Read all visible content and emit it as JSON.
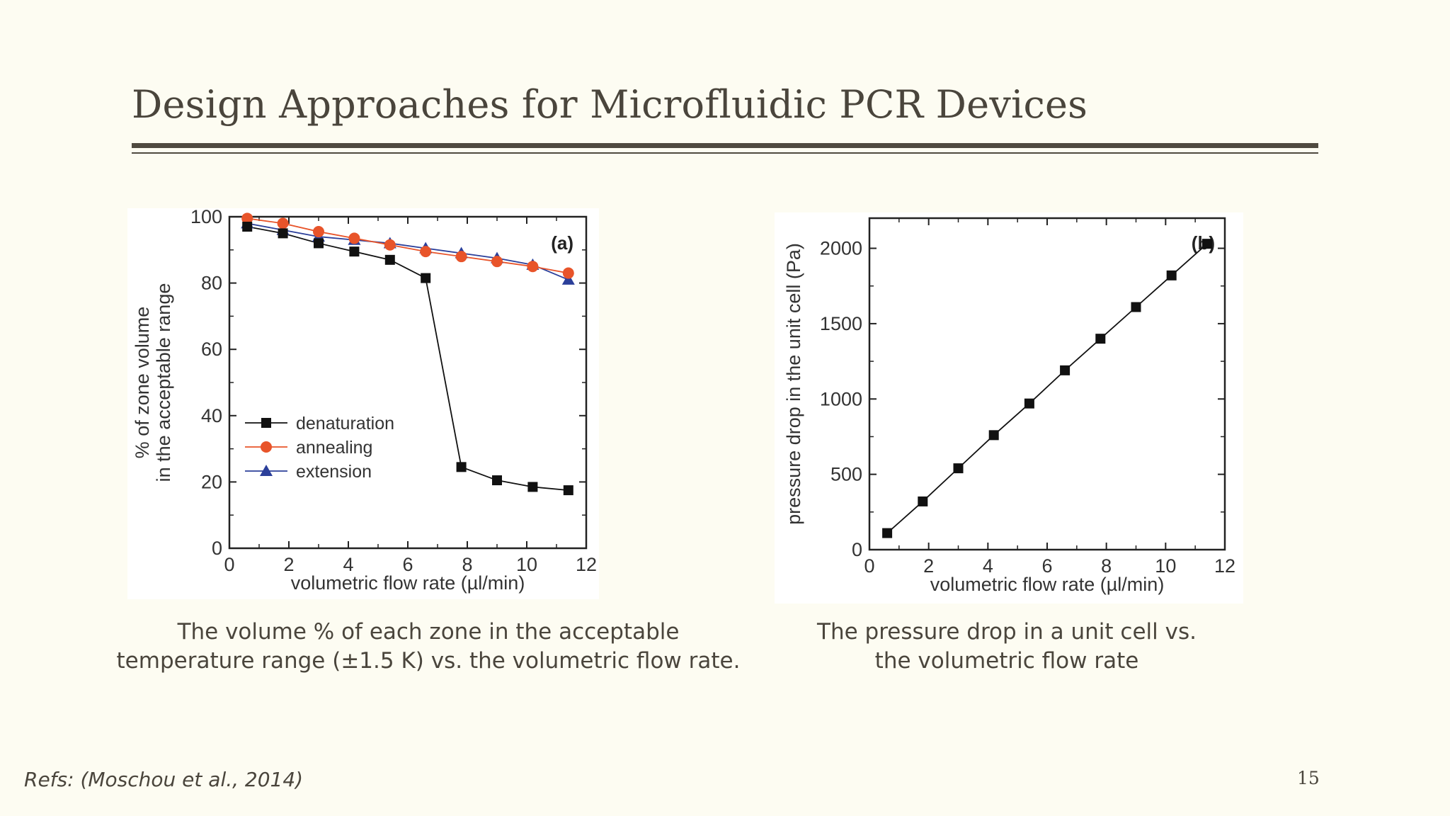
{
  "slide": {
    "title": "Design Approaches for Microfluidic PCR Devices",
    "refs": "Refs: (Moschou et al., 2014)",
    "page_number": "15"
  },
  "captions": {
    "left": [
      "The volume % of each zone in the acceptable",
      "temperature range (±1.5 K) vs.  the volumetric flow rate."
    ],
    "right": [
      "The pressure drop in a unit cell vs.",
      "the volumetric flow rate"
    ]
  },
  "chart_data": [
    {
      "type": "line",
      "panel_label": "(a)",
      "xlabel": "volumetric flow rate (µl/min)",
      "ylabel": [
        "% of zone volume",
        "in the acceptable range"
      ],
      "xlim": [
        0,
        12
      ],
      "ylim": [
        0,
        100
      ],
      "xticks": [
        0,
        2,
        4,
        6,
        8,
        10,
        12
      ],
      "yticks": [
        0,
        20,
        40,
        60,
        80,
        100
      ],
      "x": [
        0.6,
        1.8,
        3.0,
        4.2,
        5.4,
        6.6,
        7.8,
        9.0,
        10.2,
        11.4
      ],
      "legend_position": "middle-left",
      "grid": false,
      "series": [
        {
          "name": "denaturation",
          "marker": "square",
          "color": "#111111",
          "values": [
            97,
            95,
            92,
            89.5,
            87,
            81.5,
            24.5,
            20.5,
            18.5,
            17.5
          ]
        },
        {
          "name": "annealing",
          "marker": "circle",
          "color": "#e8542a",
          "values": [
            99.5,
            98,
            95.5,
            93.5,
            91.5,
            89.5,
            88,
            86.5,
            85,
            83
          ]
        },
        {
          "name": "extension",
          "marker": "triangle",
          "color": "#2b3f9a",
          "values": [
            98,
            96,
            94,
            93,
            92,
            90.5,
            89,
            87.5,
            85.5,
            81
          ]
        }
      ]
    },
    {
      "type": "line",
      "panel_label": "(b)",
      "xlabel": "volumetric flow rate (µl/min)",
      "ylabel": [
        "pressure drop in the unit cell (Pa)"
      ],
      "xlim": [
        0,
        12
      ],
      "ylim": [
        0,
        2200
      ],
      "xticks": [
        0,
        2,
        4,
        6,
        8,
        10,
        12
      ],
      "yticks": [
        0,
        500,
        1000,
        1500,
        2000
      ],
      "x": [
        0.6,
        1.8,
        3.0,
        4.2,
        5.4,
        6.6,
        7.8,
        9.0,
        10.2,
        11.4
      ],
      "grid": false,
      "series": [
        {
          "name": "",
          "marker": "square",
          "color": "#111111",
          "values": [
            110,
            320,
            540,
            760,
            970,
            1190,
            1400,
            1610,
            1820,
            2030
          ]
        }
      ]
    }
  ]
}
